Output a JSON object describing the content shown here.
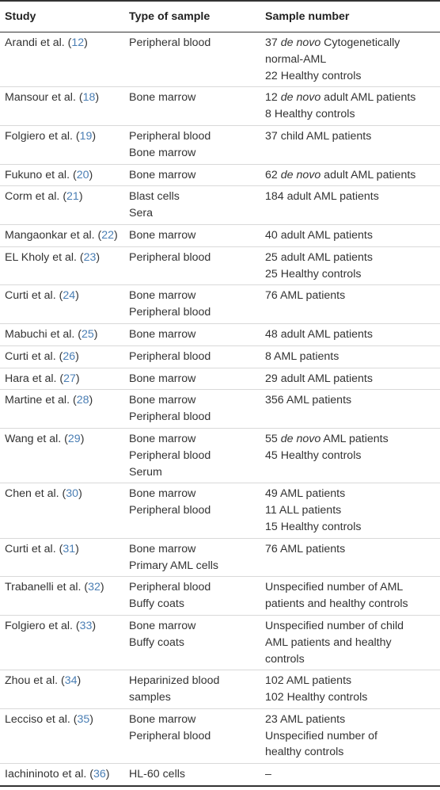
{
  "headers": {
    "study": "Study",
    "type": "Type of sample",
    "number": "Sample number"
  },
  "rows": [
    {
      "author": "Arandi et al. (",
      "ref": "12",
      "type": [
        "Peripheral blood"
      ],
      "number": [
        {
          "pre": "37 ",
          "it": "de novo",
          "post": " Cytogenetically"
        },
        {
          "pre": "normal-AML"
        },
        {
          "pre": "22 Healthy controls"
        }
      ]
    },
    {
      "author": "Mansour et al. (",
      "ref": "18",
      "type": [
        "Bone marrow"
      ],
      "number": [
        {
          "pre": "12 ",
          "it": "de novo",
          "post": " adult AML patients"
        },
        {
          "pre": "8 Healthy controls"
        }
      ]
    },
    {
      "author": "Folgiero et al. (",
      "ref": "19",
      "type": [
        "Peripheral blood",
        "Bone marrow"
      ],
      "number": [
        {
          "pre": "37 child AML patients"
        }
      ]
    },
    {
      "author": "Fukuno et al. (",
      "ref": "20",
      "type": [
        "Bone marrow"
      ],
      "number": [
        {
          "pre": "62 ",
          "it": "de novo",
          "post": " adult AML patients"
        }
      ]
    },
    {
      "author": "Corm et al. (",
      "ref": "21",
      "type": [
        "Blast cells",
        "Sera"
      ],
      "number": [
        {
          "pre": "184 adult AML patients"
        }
      ]
    },
    {
      "author": "Mangaonkar et al. (",
      "ref": "22",
      "type": [
        "Bone marrow"
      ],
      "number": [
        {
          "pre": "40 adult AML patients"
        }
      ]
    },
    {
      "author": "EL Kholy et al. (",
      "ref": "23",
      "type": [
        "Peripheral blood"
      ],
      "number": [
        {
          "pre": "25 adult AML patients"
        },
        {
          "pre": "25 Healthy controls"
        }
      ]
    },
    {
      "author": "Curti et al. (",
      "ref": "24",
      "type": [
        "Bone marrow",
        "Peripheral blood"
      ],
      "number": [
        {
          "pre": "76 AML patients"
        }
      ]
    },
    {
      "author": "Mabuchi et al. (",
      "ref": "25",
      "type": [
        "Bone marrow"
      ],
      "number": [
        {
          "pre": "48 adult AML patients"
        }
      ]
    },
    {
      "author": "Curti et al. (",
      "ref": "26",
      "type": [
        "Peripheral blood"
      ],
      "number": [
        {
          "pre": "8 AML patients"
        }
      ]
    },
    {
      "author": "Hara et al. (",
      "ref": "27",
      "type": [
        "Bone marrow"
      ],
      "number": [
        {
          "pre": "29 adult AML patients"
        }
      ]
    },
    {
      "author": "Martine et al. (",
      "ref": "28",
      "type": [
        "Bone marrow",
        "Peripheral blood"
      ],
      "number": [
        {
          "pre": "356 AML patients"
        }
      ]
    },
    {
      "author": "Wang et al. (",
      "ref": "29",
      "type": [
        "Bone marrow",
        "Peripheral blood",
        "Serum"
      ],
      "number": [
        {
          "pre": "55 ",
          "it": "de novo",
          "post": " AML patients"
        },
        {
          "pre": "45 Healthy controls"
        }
      ]
    },
    {
      "author": "Chen et al. (",
      "ref": "30",
      "type": [
        "Bone marrow",
        "Peripheral blood"
      ],
      "number": [
        {
          "pre": "49 AML patients"
        },
        {
          "pre": "11 ALL patients"
        },
        {
          "pre": "15 Healthy controls"
        }
      ]
    },
    {
      "author": "Curti et al. (",
      "ref": "31",
      "type": [
        "Bone marrow",
        "Primary AML cells"
      ],
      "number": [
        {
          "pre": "76 AML patients"
        }
      ]
    },
    {
      "author": "Trabanelli et al. (",
      "ref": "32",
      "type": [
        "Peripheral blood",
        "Buffy coats"
      ],
      "number": [
        {
          "pre": "Unspecified number of AML"
        },
        {
          "pre": "patients and healthy controls"
        }
      ]
    },
    {
      "author": "Folgiero et al. (",
      "ref": "33",
      "type": [
        "Bone marrow",
        "Buffy coats"
      ],
      "number": [
        {
          "pre": "Unspecified number of child"
        },
        {
          "pre": "AML patients and healthy"
        },
        {
          "pre": "controls"
        }
      ]
    },
    {
      "author": "Zhou et al. (",
      "ref": "34",
      "type": [
        "Heparinized blood",
        "samples"
      ],
      "number": [
        {
          "pre": "102 AML patients"
        },
        {
          "pre": "102 Healthy controls"
        }
      ]
    },
    {
      "author": "Lecciso et al. (",
      "ref": "35",
      "type": [
        "Bone marrow",
        "Peripheral blood"
      ],
      "number": [
        {
          "pre": "23 AML patients"
        },
        {
          "pre": "Unspecified number of"
        },
        {
          "pre": "healthy controls"
        }
      ]
    },
    {
      "author": "Iachininoto et al. (",
      "ref": "36",
      "type": [
        "HL-60 cells"
      ],
      "number": [
        {
          "pre": "–"
        }
      ]
    }
  ]
}
